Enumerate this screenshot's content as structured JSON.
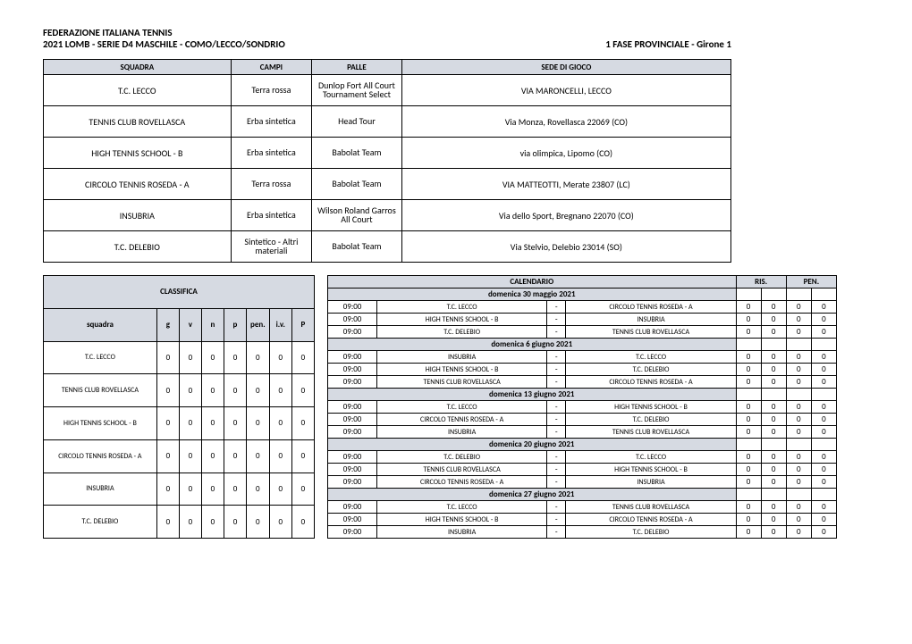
{
  "header": {
    "line1": "FEDERAZIONE ITALIANA TENNIS",
    "line2_left": "2021 LOMB - SERIE D4 MASCHILE - COMO/LECCO/SONDRIO",
    "line2_right": "1 FASE PROVINCIALE - Girone 1"
  },
  "teams": {
    "columns": {
      "squadra": "SQUADRA",
      "campi": "CAMPI",
      "palle": "PALLE",
      "sede": "SEDE DI GIOCO"
    },
    "rows": [
      {
        "squadra": "T.C. LECCO",
        "campi": "Terra rossa",
        "palle": "Dunlop Fort All Court Tournament Select",
        "sede": "VIA MARONCELLI, LECCO"
      },
      {
        "squadra": "TENNIS CLUB ROVELLASCA",
        "campi": "Erba sintetica",
        "palle": "Head Tour",
        "sede": "Via Monza, Rovellasca 22069 (CO)"
      },
      {
        "squadra": "HIGH TENNIS SCHOOL - B",
        "campi": "Erba sintetica",
        "palle": "Babolat Team",
        "sede": "via olimpica, Lipomo (CO)"
      },
      {
        "squadra": "CIRCOLO TENNIS ROSEDA - A",
        "campi": "Terra rossa",
        "palle": "Babolat Team",
        "sede": "VIA MATTEOTTI, Merate 23807 (LC)"
      },
      {
        "squadra": "INSUBRIA",
        "campi": "Erba sintetica",
        "palle": "Wilson Roland Garros All Court",
        "sede": "Via dello Sport, Bregnano 22070 (CO)"
      },
      {
        "squadra": "T.C. DELEBIO",
        "campi": "Sintetico - Altri materiali",
        "palle": "Babolat Team",
        "sede": "Via Stelvio, Delebio 23014 (SO)"
      }
    ]
  },
  "classifica": {
    "title": "CLASSIFICA",
    "columns": {
      "squadra": "squadra",
      "g": "g",
      "v": "v",
      "n": "n",
      "p": "p",
      "pen": "pen.",
      "iv": "i.v.",
      "P": "P"
    },
    "rows": [
      {
        "squadra": "T.C. LECCO",
        "g": "0",
        "v": "0",
        "n": "0",
        "p": "0",
        "pen": "0",
        "iv": "0",
        "P": "0"
      },
      {
        "squadra": "TENNIS CLUB ROVELLASCA",
        "g": "0",
        "v": "0",
        "n": "0",
        "p": "0",
        "pen": "0",
        "iv": "0",
        "P": "0"
      },
      {
        "squadra": "HIGH TENNIS SCHOOL - B",
        "g": "0",
        "v": "0",
        "n": "0",
        "p": "0",
        "pen": "0",
        "iv": "0",
        "P": "0"
      },
      {
        "squadra": "CIRCOLO TENNIS ROSEDA - A",
        "g": "0",
        "v": "0",
        "n": "0",
        "p": "0",
        "pen": "0",
        "iv": "0",
        "P": "0"
      },
      {
        "squadra": "INSUBRIA",
        "g": "0",
        "v": "0",
        "n": "0",
        "p": "0",
        "pen": "0",
        "iv": "0",
        "P": "0"
      },
      {
        "squadra": "T.C. DELEBIO",
        "g": "0",
        "v": "0",
        "n": "0",
        "p": "0",
        "pen": "0",
        "iv": "0",
        "P": "0"
      }
    ]
  },
  "calendar": {
    "title": "CALENDARIO",
    "ris": "RIS.",
    "pen": "PEN.",
    "days": [
      {
        "date": "domenica 30 maggio 2021",
        "matches": [
          {
            "time": "09:00",
            "home": "T.C. LECCO",
            "away": "CIRCOLO TENNIS ROSEDA - A",
            "s": [
              "0",
              "0",
              "0",
              "0"
            ]
          },
          {
            "time": "09:00",
            "home": "HIGH TENNIS SCHOOL - B",
            "away": "INSUBRIA",
            "s": [
              "0",
              "0",
              "0",
              "0"
            ]
          },
          {
            "time": "09:00",
            "home": "T.C. DELEBIO",
            "away": "TENNIS CLUB ROVELLASCA",
            "s": [
              "0",
              "0",
              "0",
              "0"
            ]
          }
        ]
      },
      {
        "date": "domenica 6 giugno 2021",
        "matches": [
          {
            "time": "09:00",
            "home": "INSUBRIA",
            "away": "T.C. LECCO",
            "s": [
              "0",
              "0",
              "0",
              "0"
            ]
          },
          {
            "time": "09:00",
            "home": "HIGH TENNIS SCHOOL - B",
            "away": "T.C. DELEBIO",
            "s": [
              "0",
              "0",
              "0",
              "0"
            ]
          },
          {
            "time": "09:00",
            "home": "TENNIS CLUB ROVELLASCA",
            "away": "CIRCOLO TENNIS ROSEDA - A",
            "s": [
              "0",
              "0",
              "0",
              "0"
            ]
          }
        ]
      },
      {
        "date": "domenica 13 giugno 2021",
        "matches": [
          {
            "time": "09:00",
            "home": "T.C. LECCO",
            "away": "HIGH TENNIS SCHOOL - B",
            "s": [
              "0",
              "0",
              "0",
              "0"
            ]
          },
          {
            "time": "09:00",
            "home": "CIRCOLO TENNIS ROSEDA - A",
            "away": "T.C. DELEBIO",
            "s": [
              "0",
              "0",
              "0",
              "0"
            ]
          },
          {
            "time": "09:00",
            "home": "INSUBRIA",
            "away": "TENNIS CLUB ROVELLASCA",
            "s": [
              "0",
              "0",
              "0",
              "0"
            ]
          }
        ]
      },
      {
        "date": "domenica 20 giugno 2021",
        "matches": [
          {
            "time": "09:00",
            "home": "T.C. DELEBIO",
            "away": "T.C. LECCO",
            "s": [
              "0",
              "0",
              "0",
              "0"
            ]
          },
          {
            "time": "09:00",
            "home": "TENNIS CLUB ROVELLASCA",
            "away": "HIGH TENNIS SCHOOL - B",
            "s": [
              "0",
              "0",
              "0",
              "0"
            ]
          },
          {
            "time": "09:00",
            "home": "CIRCOLO TENNIS ROSEDA - A",
            "away": "INSUBRIA",
            "s": [
              "0",
              "0",
              "0",
              "0"
            ]
          }
        ]
      },
      {
        "date": "domenica 27 giugno 2021",
        "matches": [
          {
            "time": "09:00",
            "home": "T.C. LECCO",
            "away": "TENNIS CLUB ROVELLASCA",
            "s": [
              "0",
              "0",
              "0",
              "0"
            ]
          },
          {
            "time": "09:00",
            "home": "HIGH TENNIS SCHOOL - B",
            "away": "CIRCOLO TENNIS ROSEDA - A",
            "s": [
              "0",
              "0",
              "0",
              "0"
            ]
          },
          {
            "time": "09:00",
            "home": "INSUBRIA",
            "away": "T.C. DELEBIO",
            "s": [
              "0",
              "0",
              "0",
              "0"
            ]
          }
        ]
      }
    ]
  }
}
